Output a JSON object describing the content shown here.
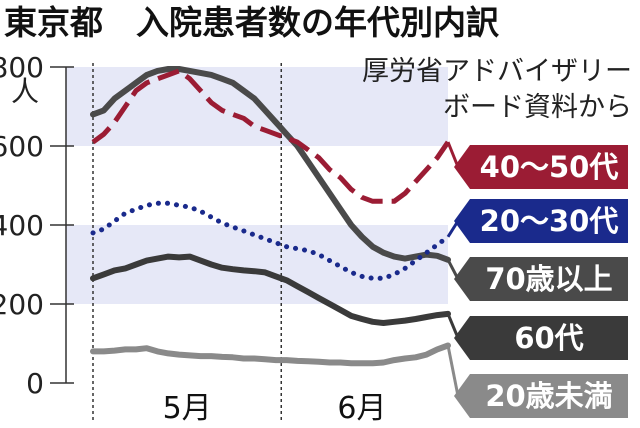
{
  "chart_data": {
    "type": "line",
    "title": "東京都　入院患者数の年代別内訳",
    "source_lines": [
      "厚労省アドバイザリー",
      "ボード資料から"
    ],
    "ylabel": "人",
    "ylim": [
      0,
      800
    ],
    "yticks": [
      "0",
      "200",
      "400",
      "600",
      "800"
    ],
    "x_range": [
      0,
      66
    ],
    "x_month_boundaries": [
      0,
      35
    ],
    "xticks": [
      {
        "label": "5月",
        "x": 17.5
      },
      {
        "label": "6月",
        "x": 50
      }
    ],
    "bands": [
      [
        200,
        400
      ],
      [
        600,
        800
      ]
    ],
    "series": [
      {
        "name": "40〜50代",
        "color": "#9b1c34",
        "style": "dashed",
        "x": [
          0,
          2,
          4,
          6,
          8,
          10,
          12,
          14,
          16,
          18,
          20,
          22,
          24,
          26,
          28,
          30,
          32,
          34,
          36,
          38,
          40,
          42,
          44,
          46,
          48,
          50,
          52,
          54,
          56,
          58,
          60,
          62,
          64,
          66
        ],
        "values": [
          610,
          630,
          660,
          700,
          740,
          760,
          770,
          780,
          790,
          770,
          740,
          710,
          690,
          680,
          670,
          650,
          640,
          630,
          620,
          610,
          590,
          570,
          540,
          520,
          490,
          470,
          460,
          460,
          460,
          480,
          510,
          540,
          570,
          610
        ]
      },
      {
        "name": "20〜30代",
        "color": "#1a2a8c",
        "style": "dotted",
        "x": [
          0,
          2,
          4,
          6,
          8,
          10,
          12,
          14,
          16,
          18,
          20,
          22,
          24,
          26,
          28,
          30,
          32,
          34,
          36,
          38,
          40,
          42,
          44,
          46,
          48,
          50,
          52,
          54,
          56,
          58,
          60,
          62,
          64,
          66
        ],
        "values": [
          380,
          390,
          410,
          430,
          440,
          450,
          455,
          455,
          450,
          445,
          435,
          420,
          405,
          395,
          385,
          375,
          365,
          355,
          345,
          340,
          335,
          325,
          310,
          295,
          280,
          270,
          265,
          265,
          275,
          290,
          310,
          330,
          350,
          370
        ]
      },
      {
        "name": "70歳以上",
        "color": "#4a4a4a",
        "style": "solid",
        "x": [
          0,
          2,
          4,
          6,
          8,
          10,
          12,
          14,
          16,
          18,
          20,
          22,
          24,
          26,
          28,
          30,
          32,
          34,
          36,
          38,
          40,
          42,
          44,
          46,
          48,
          50,
          52,
          54,
          56,
          58,
          60,
          62,
          64,
          66
        ],
        "values": [
          680,
          690,
          720,
          740,
          760,
          780,
          790,
          795,
          795,
          790,
          785,
          780,
          770,
          760,
          740,
          720,
          690,
          660,
          630,
          600,
          560,
          520,
          480,
          440,
          400,
          370,
          345,
          330,
          320,
          315,
          320,
          325,
          322,
          312
        ]
      },
      {
        "name": "60代",
        "color": "#3a3a3a",
        "style": "solid",
        "x": [
          0,
          2,
          4,
          6,
          8,
          10,
          12,
          14,
          16,
          18,
          20,
          22,
          24,
          26,
          28,
          30,
          32,
          34,
          36,
          38,
          40,
          42,
          44,
          46,
          48,
          50,
          52,
          54,
          56,
          58,
          60,
          62,
          64,
          66
        ],
        "values": [
          265,
          275,
          285,
          290,
          300,
          310,
          315,
          320,
          318,
          320,
          310,
          300,
          292,
          288,
          285,
          283,
          280,
          270,
          260,
          245,
          230,
          215,
          200,
          185,
          170,
          162,
          155,
          152,
          155,
          158,
          162,
          167,
          172,
          175
        ]
      },
      {
        "name": "20歳未満",
        "color": "#8a8a8a",
        "style": "solid",
        "x": [
          0,
          2,
          4,
          6,
          8,
          10,
          12,
          14,
          16,
          18,
          20,
          22,
          24,
          26,
          28,
          30,
          32,
          34,
          36,
          38,
          40,
          42,
          44,
          46,
          48,
          50,
          52,
          54,
          56,
          58,
          60,
          62,
          64,
          66
        ],
        "values": [
          80,
          80,
          82,
          85,
          85,
          88,
          80,
          75,
          72,
          70,
          68,
          68,
          66,
          65,
          62,
          62,
          60,
          58,
          58,
          56,
          55,
          54,
          52,
          52,
          50,
          50,
          50,
          52,
          58,
          62,
          65,
          72,
          85,
          95
        ]
      }
    ],
    "legend": [
      {
        "name": "40〜50代",
        "fill": "#9b1c34"
      },
      {
        "name": "20〜30代",
        "fill": "#1a2a8c"
      },
      {
        "name": "70歳以上",
        "fill": "#4a4a4a"
      },
      {
        "name": "60代",
        "fill": "#3a3a3a"
      },
      {
        "name": "20歳未満",
        "fill": "#8a8a8a"
      }
    ]
  }
}
